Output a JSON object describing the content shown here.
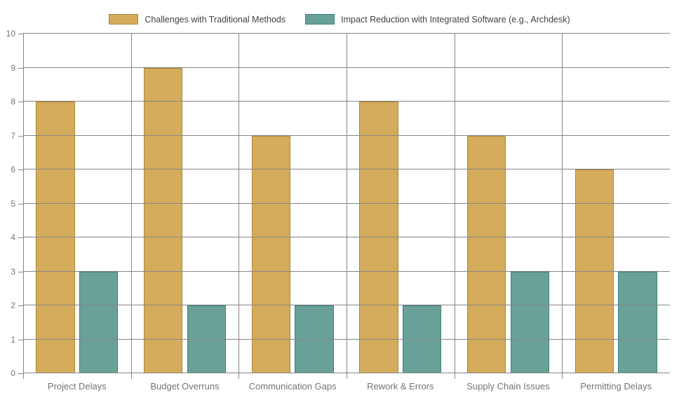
{
  "chart_data": {
    "type": "bar",
    "title": "",
    "xlabel": "",
    "ylabel": "",
    "grid": true,
    "legend_position": "top",
    "categories": [
      "Project Delays",
      "Budget Overruns",
      "Communication Gaps",
      "Rework & Errors",
      "Supply Chain Issues",
      "Permitting Delays"
    ],
    "series": [
      {
        "name": "Challenges with Traditional Methods",
        "values": [
          8,
          9,
          7,
          8,
          7,
          6
        ],
        "fill": "#D4AC5C",
        "border": "#A98734"
      },
      {
        "name": "Impact Reduction with Integrated Software (e.g., Archdesk)",
        "values": [
          3,
          2,
          2,
          2,
          3,
          3
        ],
        "fill": "#69A198",
        "border": "#408076"
      }
    ],
    "ylim": [
      0,
      10
    ],
    "yticks": [
      0,
      1,
      2,
      3,
      4,
      5,
      6,
      7,
      8,
      9,
      10
    ]
  }
}
